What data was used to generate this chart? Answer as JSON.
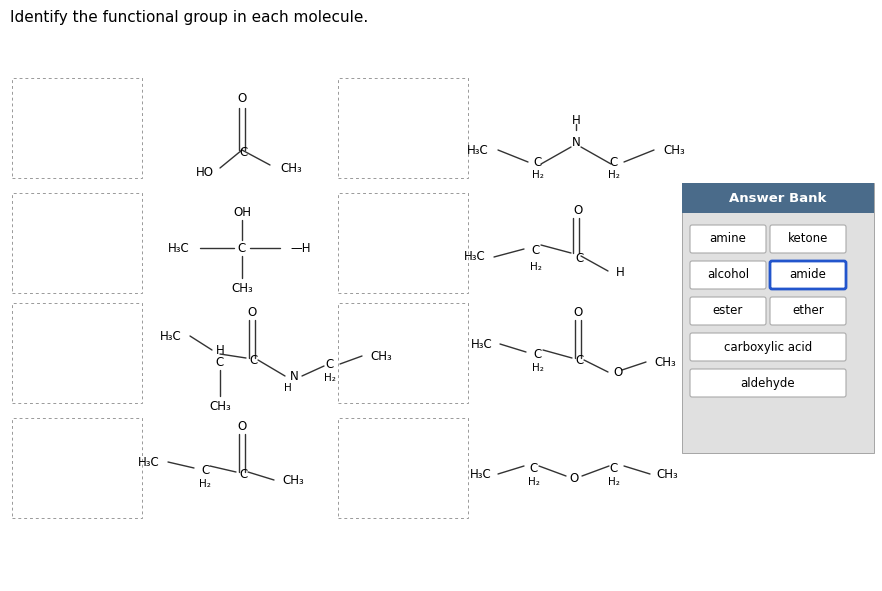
{
  "title": "Identify the functional group in each molecule.",
  "bg_color": "#ffffff",
  "title_fontsize": 11,
  "answer_bank": {
    "header": "Answer Bank",
    "header_bg": "#4a6b8a",
    "header_fg": "#ffffff",
    "panel_bg": "#e0e0e0",
    "buttons": [
      {
        "label": "amine",
        "col": 0,
        "row": 0,
        "highlighted": false
      },
      {
        "label": "ketone",
        "col": 1,
        "row": 0,
        "highlighted": false
      },
      {
        "label": "alcohol",
        "col": 0,
        "row": 1,
        "highlighted": false
      },
      {
        "label": "amide",
        "col": 1,
        "row": 1,
        "highlighted": true
      },
      {
        "label": "ester",
        "col": 0,
        "row": 2,
        "highlighted": false
      },
      {
        "label": "ether",
        "col": 1,
        "row": 2,
        "highlighted": false
      },
      {
        "label": "carboxylic acid",
        "col": 0,
        "row": 3,
        "highlighted": false,
        "wide": true
      },
      {
        "label": "aldehyde",
        "col": 0,
        "row": 4,
        "highlighted": false,
        "wide": true
      }
    ]
  }
}
